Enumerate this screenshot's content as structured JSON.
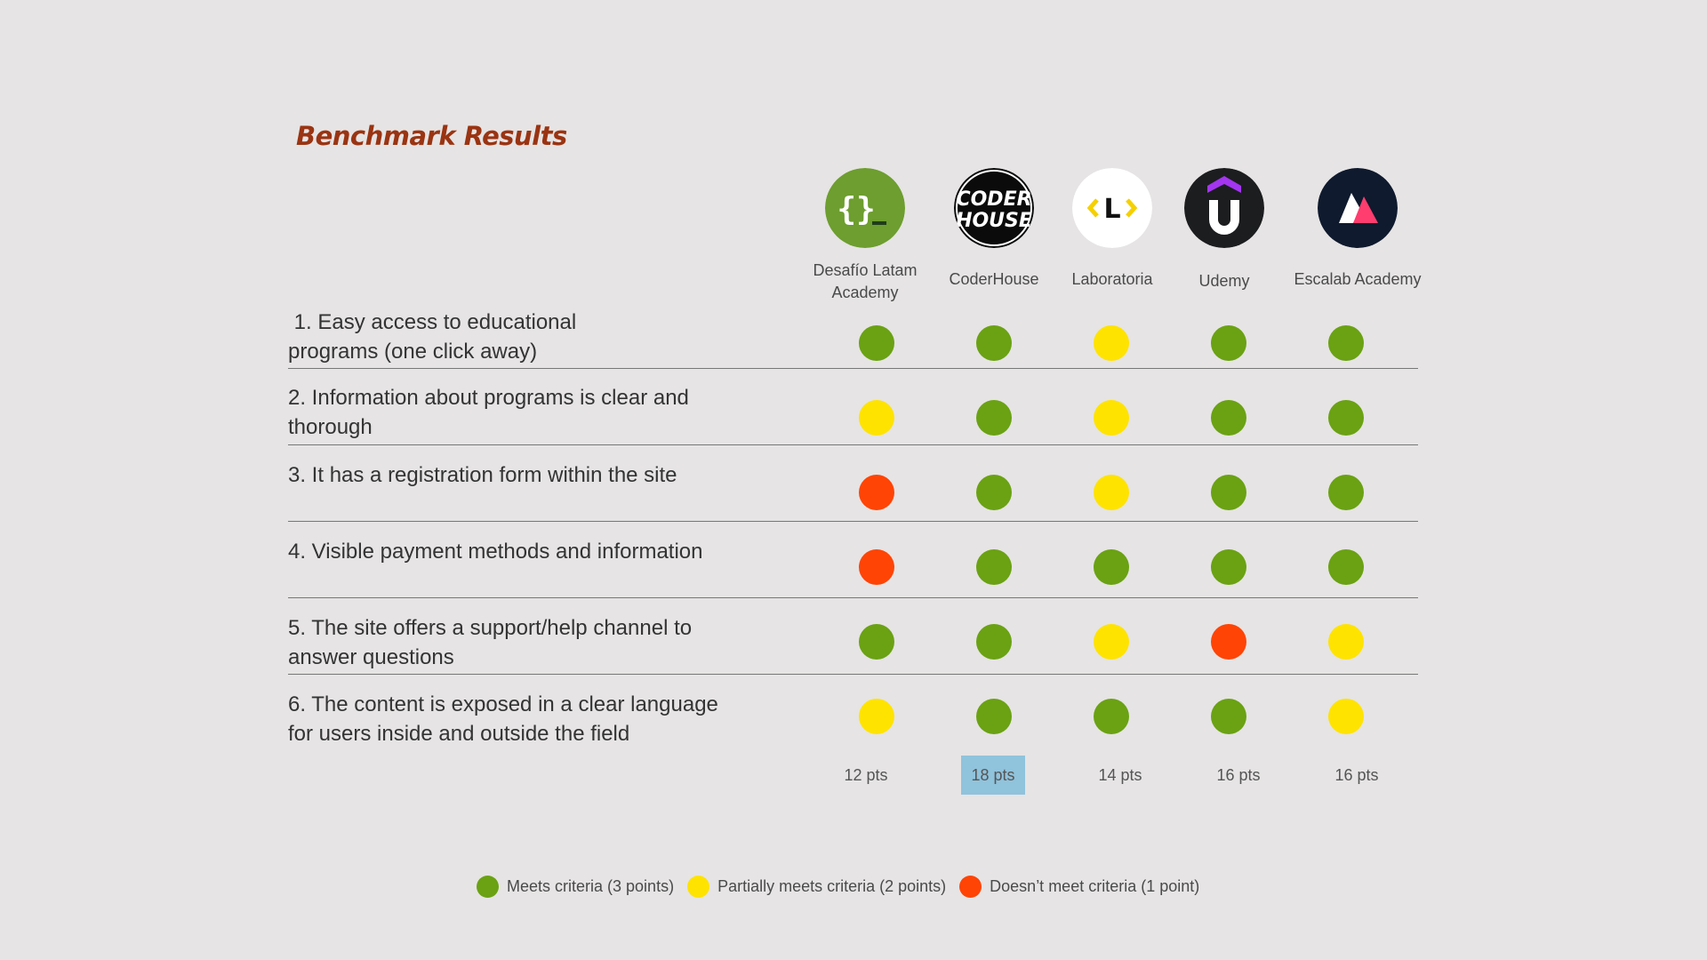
{
  "title": "Benchmark Results",
  "colors": {
    "meets": "#6aa213",
    "partial": "#ffe300",
    "fails": "#ff4405",
    "highlight": "#90c3dc"
  },
  "columns": [
    {
      "name": "Desafío Latam\nAcademy",
      "logo": "curly-braces-logo-icon",
      "points": "12 pts"
    },
    {
      "name": "CoderHouse",
      "logo": "coderhouse-logo-icon",
      "points": "18 pts",
      "best": true
    },
    {
      "name": "Laboratoria",
      "logo": "laboratoria-logo-icon",
      "points": "14 pts"
    },
    {
      "name": "Udemy",
      "logo": "udemy-logo-icon",
      "points": "16 pts"
    },
    {
      "name": "Escalab Academy",
      "logo": "escalab-logo-icon",
      "points": "16 pts"
    }
  ],
  "criteria": [
    {
      "label": " 1. Easy access to educational\nprograms (one click away)",
      "ratings": [
        "meets",
        "meets",
        "partial",
        "meets",
        "meets"
      ]
    },
    {
      "label": "2. Information about programs is clear and\nthorough",
      "ratings": [
        "partial",
        "meets",
        "partial",
        "meets",
        "meets"
      ]
    },
    {
      "label": "3. It has a registration form within the site",
      "ratings": [
        "fails",
        "meets",
        "partial",
        "meets",
        "meets"
      ]
    },
    {
      "label": "4. Visible payment methods and information",
      "ratings": [
        "fails",
        "meets",
        "meets",
        "meets",
        "meets"
      ]
    },
    {
      "label": "5. The site offers a support/help channel to\nanswer questions",
      "ratings": [
        "meets",
        "meets",
        "partial",
        "fails",
        "partial"
      ]
    },
    {
      "label": "6. The content is exposed in a clear language\nfor users inside and outside the field",
      "ratings": [
        "partial",
        "meets",
        "meets",
        "meets",
        "partial"
      ]
    }
  ],
  "legend": [
    {
      "key": "meets",
      "label": "Meets criteria (3 points)"
    },
    {
      "key": "partial",
      "label": "Partially meets criteria (2 points)"
    },
    {
      "key": "fails",
      "label": "Doesn’t meet criteria (1 point)"
    }
  ]
}
